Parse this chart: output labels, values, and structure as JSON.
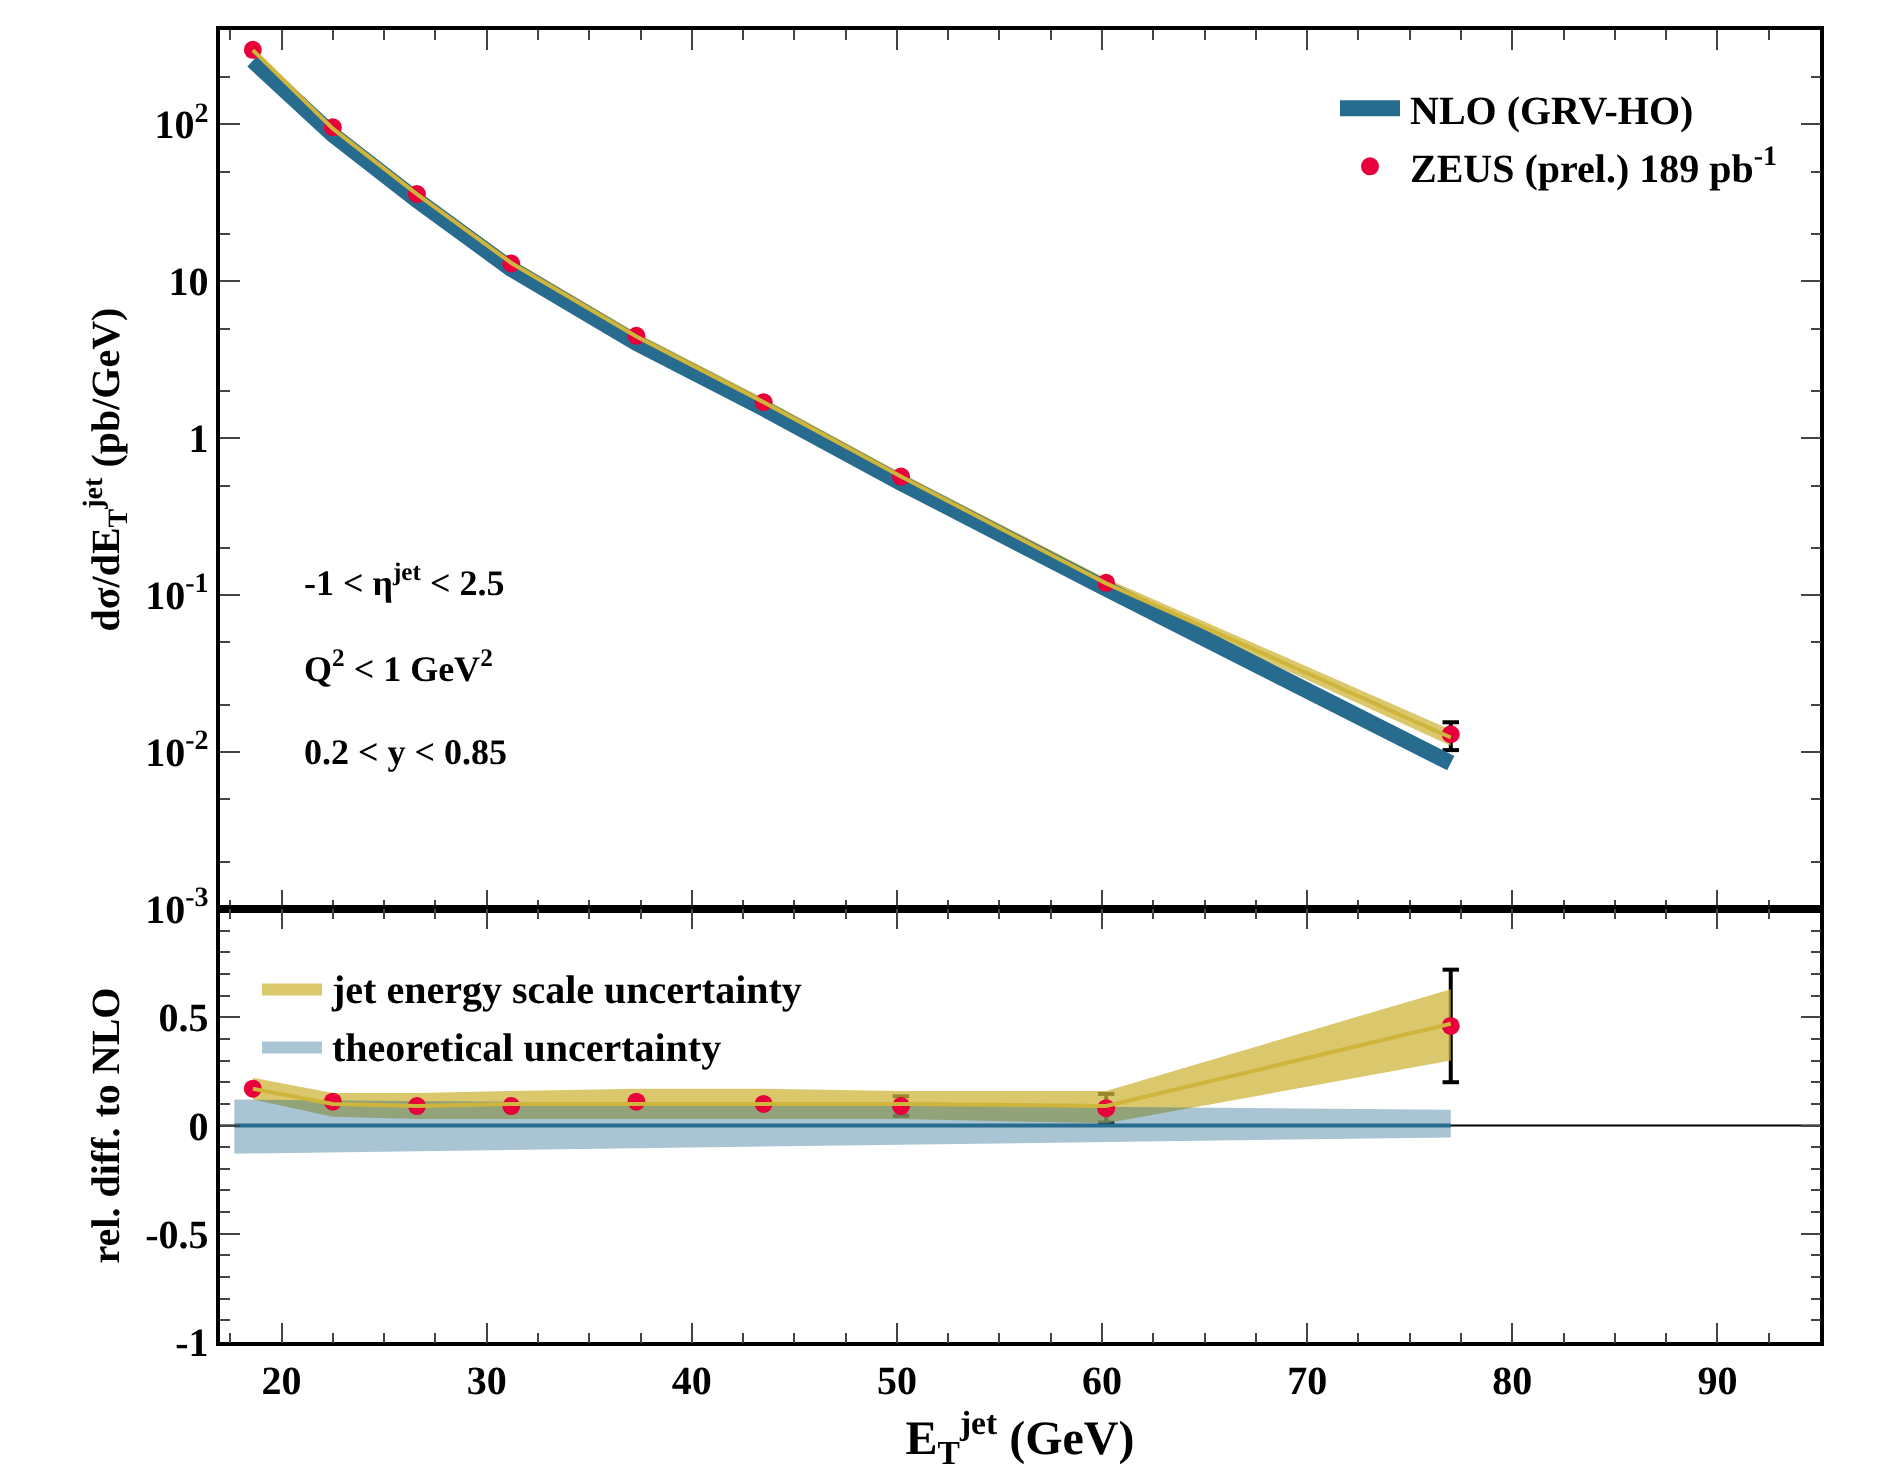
{
  "chart_data": [
    {
      "type": "line",
      "ylabel": "dσ/dE$_{T}$$^{jet}$ (pb/GeV)",
      "log": "y",
      "xlim": [
        17,
        95
      ],
      "xticks": [
        20,
        30,
        40,
        50,
        60,
        70,
        80,
        90
      ],
      "ylim": [
        0.001,
        400
      ],
      "yticks": [
        {
          "value": 0.001,
          "label": "10$^{-3}$"
        },
        {
          "value": 0.01,
          "label": "10$^{-2}$"
        },
        {
          "value": 0.1,
          "label": "10$^{-1}$"
        },
        1,
        10,
        {
          "value": 100,
          "label": "10$^{2}$"
        }
      ],
      "tick_labels": "y",
      "legend": "top right",
      "grid": false,
      "annotations": [
        "-1 < η$^{jet}$ < 2.5",
        "Q$^{2}$ < 1 GeV$^{2}$",
        "0.2 < y < 0.85"
      ],
      "x": [
        18.6,
        22.5,
        26.6,
        31.2,
        37.3,
        43.5,
        50.2,
        60.2,
        77
      ],
      "series": [
        {
          "color": "#cfb53b",
          "values": [
            298,
            94,
            36,
            13.1,
            4.45,
            1.7,
            0.57,
            0.119,
            0.0124
          ],
          "lower": [
            286,
            89,
            34,
            12.4,
            4.2,
            1.6,
            0.54,
            0.111,
            0.011
          ],
          "upper": [
            311,
            99,
            38,
            13.9,
            4.7,
            1.8,
            0.6,
            0.128,
            0.0139
          ]
        },
        {
          "name": "NLO (GRV-HO)",
          "color": "#276c8e",
          "values": [
            255,
            86,
            33,
            12,
            4.05,
            1.55,
            0.52,
            0.11,
            0.0085
          ]
        },
        {
          "type": "scatter",
          "name": "ZEUS (prel.) 189 pb$^{-1}$",
          "color": "#e8003a",
          "marker": "circle",
          "values": [
            299,
            96,
            36,
            13,
            4.5,
            1.7,
            0.57,
            0.12,
            0.013
          ],
          "errors": [
            null,
            null,
            null,
            null,
            null,
            null,
            null,
            null,
            [
              0.0103,
              0.0155
            ]
          ]
        }
      ]
    },
    {
      "type": "line",
      "xlabel": "E$_{T}$$^{jet}$ (GeV)",
      "ylabel": "rel. diff. to NLO",
      "xlim": [
        17,
        95
      ],
      "xticks": [
        20,
        30,
        40,
        50,
        60,
        70,
        80,
        90
      ],
      "ylim": [
        -1,
        1
      ],
      "yticks": [
        -1,
        -0.5,
        0,
        0.5
      ],
      "legend": "top left",
      "grid": false,
      "ref_lines": [
        {
          "axis": "y",
          "value": 0,
          "color": "#000000"
        }
      ],
      "x": [
        18.6,
        22.5,
        26.6,
        31.2,
        37.3,
        43.5,
        50.2,
        60.2,
        77
      ],
      "series": [
        {
          "name": "jet energy scale uncertainty",
          "color": "#cfb53b",
          "values": [
            0.17,
            0.1,
            0.09,
            0.1,
            0.1,
            0.1,
            0.1,
            0.09,
            0.47
          ],
          "lower": [
            0.12,
            0.04,
            0.03,
            0.03,
            0.03,
            0.03,
            0.03,
            0.01,
            0.3
          ],
          "upper": [
            0.22,
            0.15,
            0.15,
            0.16,
            0.17,
            0.17,
            0.16,
            0.16,
            0.63
          ]
        },
        {
          "name": "theoretical uncertainty",
          "color": "#276c8e",
          "x": [
            17.7,
            77
          ],
          "values": [
            0,
            0
          ],
          "lower": [
            -0.13,
            -0.055
          ],
          "upper": [
            0.12,
            0.073
          ]
        },
        {
          "type": "scatter",
          "color": "#e8003a",
          "marker": "circle",
          "values": [
            0.17,
            0.11,
            0.09,
            0.09,
            0.11,
            0.1,
            0.09,
            0.08,
            0.46
          ],
          "errors": [
            null,
            null,
            null,
            null,
            null,
            null,
            0.045,
            0.066,
            [
              0.2,
              0.72
            ]
          ]
        }
      ]
    }
  ]
}
